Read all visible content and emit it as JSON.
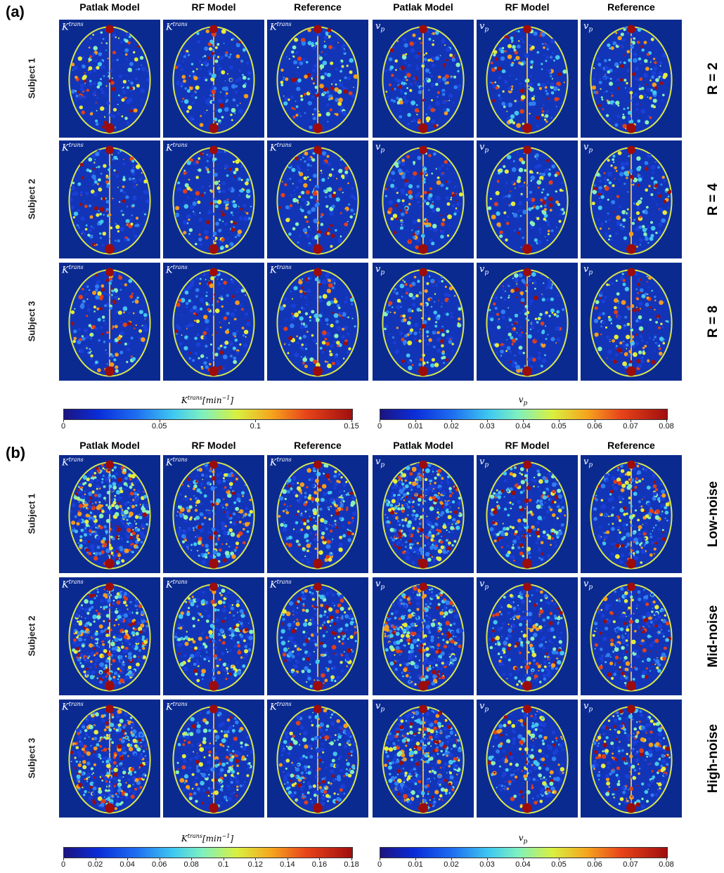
{
  "panels": [
    {
      "label": "(a)",
      "headers": [
        "Patlak Model",
        "RF Model",
        "Reference",
        "Patlak Model",
        "RF Model",
        "Reference"
      ],
      "rows": [
        "Subject 1",
        "Subject 2",
        "Subject 3"
      ],
      "conditions": [
        "R = 2",
        "R = 4",
        "R = 8"
      ],
      "tags": [
        "Ktrans",
        "Ktrans",
        "Ktrans",
        "vp",
        "vp",
        "vp"
      ],
      "colorbars": [
        {
          "title": "Ktrans[min⁻¹]",
          "ticks": [
            "0",
            "0.05",
            "0.1",
            "0.15"
          ],
          "range": [
            0,
            0.15
          ]
        },
        {
          "title": "vp",
          "ticks": [
            "0",
            "0.01",
            "0.02",
            "0.03",
            "0.04",
            "0.05",
            "0.06",
            "0.07",
            "0.08"
          ],
          "range": [
            0,
            0.08
          ]
        }
      ]
    },
    {
      "label": "(b)",
      "headers": [
        "Patlak Model",
        "RF Model",
        "Reference",
        "Patlak Model",
        "RF Model",
        "Reference"
      ],
      "rows": [
        "Subject 1",
        "Subject 2",
        "Subject 3"
      ],
      "conditions": [
        "Low-noise",
        "Mid-noise",
        "High-noise"
      ],
      "tags": [
        "Ktrans",
        "Ktrans",
        "Ktrans",
        "vp",
        "vp",
        "vp"
      ],
      "colorbars": [
        {
          "title": "Ktrans[min⁻¹]",
          "ticks": [
            "0",
            "0.02",
            "0.04",
            "0.06",
            "0.08",
            "0.1",
            "0.12",
            "0.14",
            "0.16",
            "0.18"
          ],
          "range": [
            0,
            0.18
          ]
        },
        {
          "title": "vp",
          "ticks": [
            "0",
            "0.01",
            "0.02",
            "0.03",
            "0.04",
            "0.05",
            "0.06",
            "0.07",
            "0.08"
          ],
          "range": [
            0,
            0.08
          ]
        }
      ]
    }
  ]
}
